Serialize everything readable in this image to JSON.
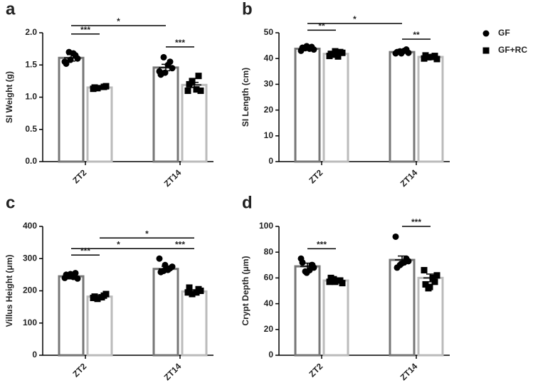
{
  "chart_data": [
    {
      "type": "bar",
      "label": "a",
      "ylabel": "SI Weight (g)",
      "categories": [
        "ZT2",
        "ZT14"
      ],
      "ylim": [
        0,
        2
      ],
      "yticks": [
        {
          "value": 0,
          "label": "0.0"
        },
        0.5,
        {
          "value": 1,
          "label": "1.0"
        },
        1.5,
        {
          "value": 2,
          "label": "2.0"
        }
      ],
      "series": [
        {
          "name": "GF",
          "color": "#777777",
          "marker": "circle",
          "values": [
            1.61,
            1.46
          ],
          "errors": [
            0.05,
            0.05
          ],
          "points": [
            [
              1.55,
              1.65,
              1.7,
              1.6,
              1.52,
              1.68,
              1.58
            ],
            [
              1.4,
              1.55,
              1.62,
              1.45,
              1.35,
              1.5,
              1.38
            ]
          ]
        },
        {
          "name": "GF+RC",
          "color": "#bbbbbb",
          "marker": "square",
          "values": [
            1.15,
            1.19
          ],
          "errors": [
            0.02,
            0.04
          ],
          "points": [
            [
              1.13,
              1.16,
              1.14,
              1.17,
              1.15
            ],
            [
              1.1,
              1.33,
              1.25,
              1.1,
              1.2,
              1.12
            ]
          ]
        }
      ],
      "annotations": [
        {
          "text": "*",
          "y": 2.11,
          "from": [
            0,
            0
          ],
          "to": [
            0,
            1
          ]
        },
        {
          "text": "***",
          "y": 1.98,
          "from": [
            0,
            0
          ],
          "to": [
            1,
            0
          ]
        },
        {
          "text": "***",
          "y": 1.78,
          "from": [
            0,
            1
          ],
          "to": [
            1,
            1
          ]
        }
      ]
    },
    {
      "type": "bar",
      "label": "b",
      "ylabel": "SI Length (cm)",
      "categories": [
        "ZT2",
        "ZT14"
      ],
      "legend": true,
      "ylim": [
        0,
        50
      ],
      "yticks": [
        0,
        10,
        20,
        30,
        40,
        50
      ],
      "series": [
        {
          "name": "GF",
          "color": "#777777",
          "marker": "circle",
          "values": [
            43.8,
            42.5
          ],
          "errors": [
            0.5,
            0.4
          ],
          "points": [
            [
              43,
              44.5,
              44,
              43.5,
              44.2,
              43.8,
              44.8
            ],
            [
              42,
              43.5,
              42.8,
              42.2,
              42.5,
              43,
              42
            ]
          ]
        },
        {
          "name": "GF+RC",
          "color": "#bbbbbb",
          "marker": "square",
          "values": [
            41.8,
            40.6
          ],
          "errors": [
            0.5,
            0.5
          ],
          "points": [
            [
              41,
              42.5,
              41.5,
              42.2,
              41.8,
              40.8,
              42.8
            ],
            [
              40,
              41,
              40.5,
              39.8,
              41.2,
              40.6
            ]
          ]
        }
      ],
      "annotations": [
        {
          "text": "*",
          "y": 53.6,
          "from": [
            0,
            0
          ],
          "to": [
            0,
            1
          ]
        },
        {
          "text": "**",
          "y": 51,
          "from": [
            0,
            0
          ],
          "to": [
            1,
            0
          ]
        },
        {
          "text": "**",
          "y": 47.5,
          "from": [
            0,
            1
          ],
          "to": [
            1,
            1
          ]
        }
      ]
    },
    {
      "type": "bar",
      "label": "c",
      "ylabel": "Villus Height (μm)",
      "categories": [
        "ZT2",
        "ZT14"
      ],
      "ylim": [
        0,
        400
      ],
      "yticks": [
        0,
        100,
        200,
        300,
        400
      ],
      "series": [
        {
          "name": "GF",
          "color": "#777777",
          "marker": "circle",
          "values": [
            245,
            268
          ],
          "errors": [
            8,
            8
          ],
          "points": [
            [
              240,
              255,
              248,
              238,
              250,
              243,
              252
            ],
            [
              300,
              270,
              262,
              275,
              258,
              265,
              280
            ]
          ]
        },
        {
          "name": "GF+RC",
          "color": "#bbbbbb",
          "marker": "square",
          "values": [
            182,
            198
          ],
          "errors": [
            5,
            5
          ],
          "points": [
            [
              178,
              185,
              175,
              190,
              182,
              180
            ],
            [
              195,
              205,
              190,
              200,
              210,
              195
            ]
          ]
        }
      ],
      "annotations": [
        {
          "text": "*",
          "y": 364,
          "from": [
            1,
            0
          ],
          "to": [
            1,
            1
          ]
        },
        {
          "text": "*",
          "y": 331,
          "from": [
            0,
            0
          ],
          "to": [
            0,
            1
          ]
        },
        {
          "text": "***",
          "y": 311,
          "from": [
            0,
            0
          ],
          "to": [
            1,
            0
          ]
        },
        {
          "text": "***",
          "y": 331,
          "from": [
            0,
            1
          ],
          "to": [
            1,
            1
          ]
        }
      ]
    },
    {
      "type": "bar",
      "label": "d",
      "ylabel": "Crypt Depth (μm)",
      "categories": [
        "ZT2",
        "ZT14"
      ],
      "ylim": [
        0,
        100
      ],
      "yticks": [
        0,
        20,
        40,
        60,
        80,
        100
      ],
      "series": [
        {
          "name": "GF",
          "color": "#777777",
          "marker": "circle",
          "values": [
            69,
            74
          ],
          "errors": [
            2.5,
            3
          ],
          "points": [
            [
              75,
              70,
              65,
              68,
              72,
              66,
              64,
              70
            ],
            [
              92,
              75,
              70,
              73,
              68,
              72,
              71
            ]
          ]
        },
        {
          "name": "GF+RC",
          "color": "#bbbbbb",
          "marker": "square",
          "values": [
            58,
            60
          ],
          "errors": [
            1,
            3
          ],
          "points": [
            [
              57,
              58,
              59,
              56,
              60,
              58,
              57
            ],
            [
              66,
              57,
              52,
              62,
              55,
              60,
              53
            ]
          ]
        }
      ],
      "annotations": [
        {
          "text": "***",
          "y": 82.7,
          "from": [
            0,
            0
          ],
          "to": [
            1,
            0
          ]
        },
        {
          "text": "***",
          "y": 100,
          "from": [
            0,
            1
          ],
          "to": [
            1,
            1
          ]
        }
      ]
    }
  ]
}
